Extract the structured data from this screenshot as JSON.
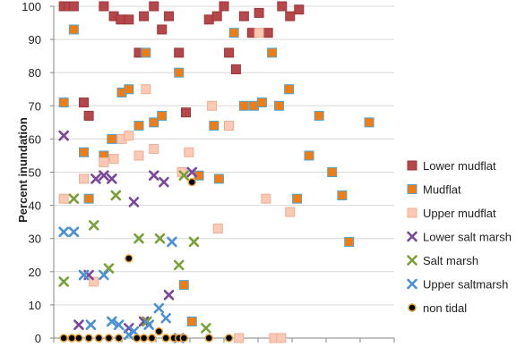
{
  "chart_data": {
    "type": "scatter",
    "ylabel": "Percent inundation",
    "xlabel": "",
    "ylim": [
      0,
      100
    ],
    "yticks": [
      0,
      10,
      20,
      30,
      40,
      50,
      60,
      70,
      80,
      90,
      100
    ],
    "xlim": [
      0,
      34
    ],
    "legend_position": "right",
    "series": [
      {
        "name": "Lower mudflat",
        "marker": "square",
        "color": "#b5474b",
        "stroke": "#9c3538",
        "points": [
          [
            1,
            100
          ],
          [
            1.5,
            100
          ],
          [
            2,
            100
          ],
          [
            3,
            71
          ],
          [
            3.5,
            67
          ],
          [
            5,
            100
          ],
          [
            6,
            97
          ],
          [
            6.7,
            96
          ],
          [
            7.5,
            96
          ],
          [
            8.5,
            86
          ],
          [
            9,
            97
          ],
          [
            10,
            100
          ],
          [
            10.8,
            93
          ],
          [
            11.5,
            97
          ],
          [
            12.5,
            86
          ],
          [
            13.2,
            68
          ],
          [
            15.5,
            96
          ],
          [
            16.3,
            97
          ],
          [
            17,
            100
          ],
          [
            17.5,
            86
          ],
          [
            18.2,
            81
          ],
          [
            19,
            97
          ],
          [
            19.8,
            92
          ],
          [
            20.5,
            98
          ],
          [
            21.4,
            92
          ],
          [
            22.8,
            100
          ],
          [
            23.6,
            97
          ],
          [
            24.5,
            99
          ]
        ]
      },
      {
        "name": "Mudflat",
        "marker": "square",
        "color": "#f07d14",
        "stroke": "#4aa5d6",
        "points": [
          [
            1,
            71
          ],
          [
            2,
            93
          ],
          [
            3,
            56
          ],
          [
            3.5,
            42
          ],
          [
            5,
            55
          ],
          [
            5.8,
            60
          ],
          [
            6.8,
            74
          ],
          [
            7.5,
            75
          ],
          [
            8.5,
            64
          ],
          [
            9.2,
            86
          ],
          [
            10,
            65
          ],
          [
            10.8,
            67
          ],
          [
            12.5,
            80
          ],
          [
            13,
            16
          ],
          [
            13.8,
            5
          ],
          [
            14.5,
            49
          ],
          [
            16,
            64
          ],
          [
            16.5,
            48
          ],
          [
            17.5,
            64
          ],
          [
            18,
            92
          ],
          [
            19,
            70
          ],
          [
            20,
            70
          ],
          [
            20.8,
            71
          ],
          [
            21.8,
            86
          ],
          [
            22.5,
            70
          ],
          [
            23.5,
            75
          ],
          [
            24.3,
            42
          ],
          [
            25.5,
            55
          ],
          [
            26.5,
            67
          ],
          [
            27.8,
            50
          ],
          [
            28.8,
            43
          ],
          [
            29.5,
            29
          ],
          [
            31.5,
            65
          ]
        ]
      },
      {
        "name": "Upper mudflat",
        "marker": "square",
        "color": "#fbc9b4",
        "stroke": "#ecae93",
        "points": [
          [
            1,
            42
          ],
          [
            3,
            48
          ],
          [
            4,
            17
          ],
          [
            5,
            53
          ],
          [
            6,
            54
          ],
          [
            6.8,
            60
          ],
          [
            7.5,
            61
          ],
          [
            8.5,
            55
          ],
          [
            9.2,
            75
          ],
          [
            10,
            57
          ],
          [
            12.8,
            50
          ],
          [
            13.5,
            56
          ],
          [
            15.8,
            70
          ],
          [
            16.4,
            33
          ],
          [
            17.5,
            64
          ],
          [
            18.5,
            0
          ],
          [
            20.5,
            92
          ],
          [
            21.2,
            42
          ],
          [
            22,
            0
          ],
          [
            22.7,
            0
          ],
          [
            23.6,
            38
          ]
        ]
      },
      {
        "name": "Lower salt marsh",
        "marker": "x",
        "color": "#7a4699",
        "points": [
          [
            1,
            61
          ],
          [
            2.5,
            4
          ],
          [
            3,
            19
          ],
          [
            3.5,
            19
          ],
          [
            4.2,
            48
          ],
          [
            5,
            49
          ],
          [
            5.8,
            48
          ],
          [
            7.5,
            3
          ],
          [
            8,
            41
          ],
          [
            9,
            5
          ],
          [
            10,
            49
          ],
          [
            11,
            47
          ],
          [
            11.5,
            13
          ],
          [
            13.8,
            50
          ]
        ]
      },
      {
        "name": "Salt marsh",
        "marker": "x",
        "color": "#7aa038",
        "points": [
          [
            1,
            17
          ],
          [
            2,
            42
          ],
          [
            4,
            34
          ],
          [
            5.5,
            21
          ],
          [
            6.2,
            43
          ],
          [
            8.5,
            30
          ],
          [
            9.3,
            5
          ],
          [
            10.6,
            30
          ],
          [
            12.5,
            22
          ],
          [
            13,
            49
          ],
          [
            14,
            29
          ],
          [
            15.2,
            3
          ]
        ]
      },
      {
        "name": "Upper saltmarsh",
        "marker": "x",
        "color": "#4a90d4",
        "points": [
          [
            1,
            32
          ],
          [
            2,
            32
          ],
          [
            3,
            19
          ],
          [
            3.7,
            4
          ],
          [
            5,
            19
          ],
          [
            5.8,
            5
          ],
          [
            6.5,
            4
          ],
          [
            7.5,
            1
          ],
          [
            8,
            2
          ],
          [
            9.5,
            4
          ],
          [
            10.5,
            9
          ],
          [
            11.2,
            6
          ],
          [
            11.8,
            29
          ],
          [
            12.5,
            0
          ]
        ]
      },
      {
        "name": "non tidal",
        "marker": "circle",
        "color": "#000000",
        "stroke": "#e8a33c",
        "points": [
          [
            1,
            0
          ],
          [
            1.8,
            0
          ],
          [
            2.5,
            0
          ],
          [
            3.5,
            0
          ],
          [
            4.5,
            0
          ],
          [
            5.5,
            0
          ],
          [
            6.5,
            0
          ],
          [
            7.5,
            24
          ],
          [
            8.3,
            0
          ],
          [
            9,
            0
          ],
          [
            9.8,
            0
          ],
          [
            10.5,
            2
          ],
          [
            11.2,
            0
          ],
          [
            12,
            0
          ],
          [
            12.5,
            0
          ],
          [
            13,
            0
          ],
          [
            13.8,
            47
          ],
          [
            15.5,
            0
          ],
          [
            17.5,
            0
          ]
        ]
      }
    ]
  }
}
